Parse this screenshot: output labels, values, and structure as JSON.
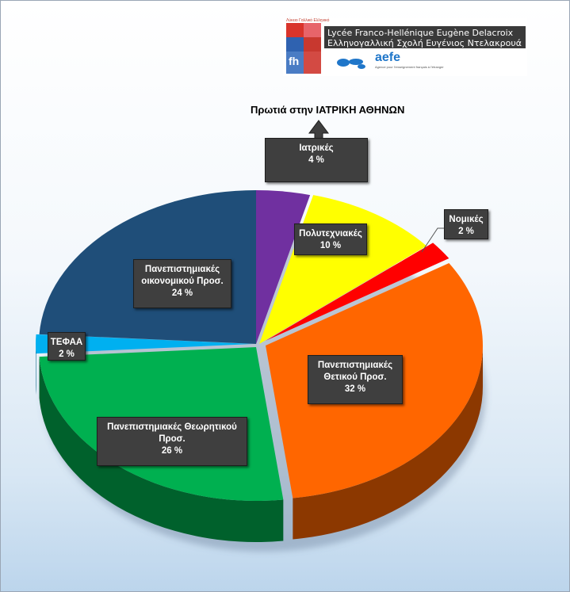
{
  "header": {
    "logo_line1": "Lycée Franco-Hellénique Eugène Delacroix",
    "logo_line2": "Ελληνογαλλική Σχολή Ευγένιος Ντελακρουά",
    "logo_small": "Λύκειο Γαλλικό Ελληνικό",
    "logo_mark": "fh",
    "logo_partner": "aefe",
    "logo_partner_sub": "Agence pour l'enseignement français à l'étranger"
  },
  "chart_data": {
    "type": "pie",
    "title": "",
    "annotation": "Πρωτιά στην ΙΑΤΡΙΚΗ ΑΘΗΝΩΝ",
    "slices": [
      {
        "label": "Ιατρικές",
        "value": 4,
        "value_text": "4 %",
        "color": "#7030a0"
      },
      {
        "label": "Πολυτεχνιακές",
        "value": 10,
        "value_text": "10 %",
        "color": "#ffff00"
      },
      {
        "label": "Νομικές",
        "value": 2,
        "value_text": "2 %",
        "color": "#ff0000"
      },
      {
        "label": "Πανεπιστημιακές Θετικού Προσ.",
        "value": 32,
        "value_text": "32  %",
        "color": "#ff6600"
      },
      {
        "label": "Πανεπιστημιακές Θεωρητικού Προσ.",
        "value": 26,
        "value_text": "26 %",
        "color": "#00b050"
      },
      {
        "label": "ΤΕΦΑΑ",
        "value": 2,
        "value_text": "2 %",
        "color": "#00b0f0"
      },
      {
        "label": "Πανεπιστημιακές οικονομικού Προσ.",
        "value": 24,
        "value_text": "24 %",
        "color": "#1f4e79"
      }
    ],
    "label_lines": [
      [
        "Ιατρικές",
        "4 %"
      ],
      [
        "Πολυτεχνιακές",
        "10 %"
      ],
      [
        "Νομικές",
        "2 %"
      ],
      [
        "Πανεπιστημιακές",
        "Θετικού Προσ.",
        "32  %"
      ],
      [
        "Πανεπιστημιακές Θεωρητικού",
        "Προσ.",
        "26 %"
      ],
      [
        "ΤΕΦΑΑ",
        "2 %"
      ],
      [
        "Πανεπιστημιακές",
        "οικονομικού Προσ.",
        "24 %"
      ]
    ],
    "style": "3d-exploded-pie",
    "legend": "none"
  }
}
